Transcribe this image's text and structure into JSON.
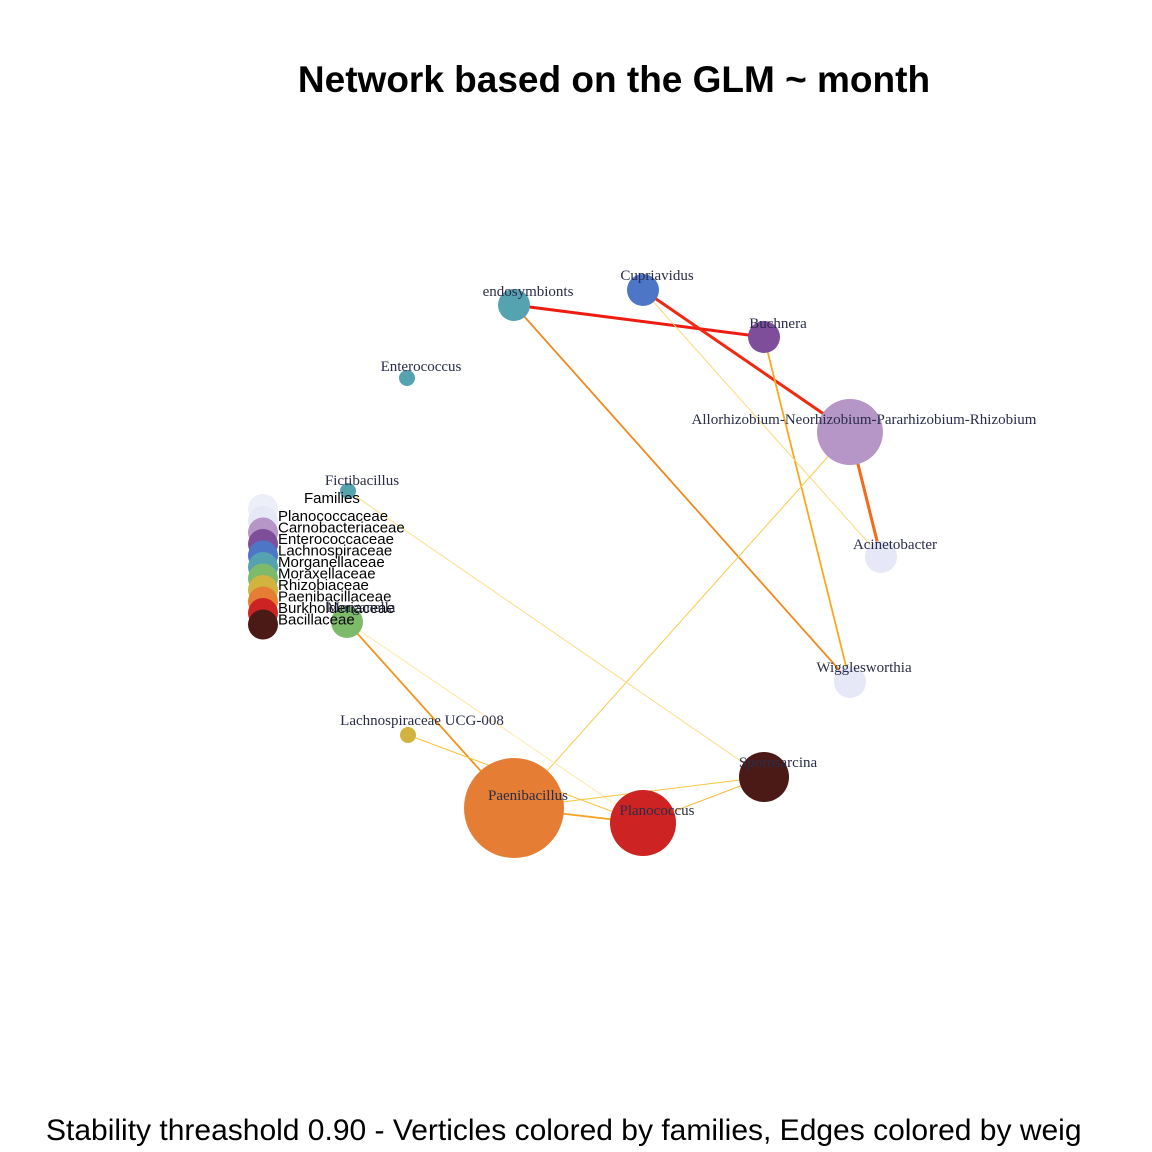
{
  "title": "Network based on the GLM ~ month",
  "caption": "Stability threashold 0.90 - Verticles colored by families, Edges colored by weig",
  "legend": {
    "title": "Families",
    "items": [
      {
        "label": "Planococcaceae",
        "color": "#e6e8f7"
      },
      {
        "label": "Carnobacteriaceae",
        "color": "#b596c6"
      },
      {
        "label": "Enterococcaceae",
        "color": "#7e4e9b"
      },
      {
        "label": "Lachnospiraceae",
        "color": "#4d76c7"
      },
      {
        "label": "Morganellaceae",
        "color": "#55a2b0"
      },
      {
        "label": "Moraxellaceae",
        "color": "#7dba6a"
      },
      {
        "label": "Rhizobiaceae",
        "color": "#d2b33f"
      },
      {
        "label": "Paenibacillaceae",
        "color": "#e57e34"
      },
      {
        "label": "Burkholderiaceae",
        "color": "#cd2423"
      },
      {
        "label": "Bacillaceae",
        "color": "#4b1a16"
      }
    ]
  },
  "nodes": [
    {
      "id": "endosymbionts",
      "label": "endosymbionts",
      "color": "#55a2b0",
      "size": "medium"
    },
    {
      "id": "cupriavidus",
      "label": "Cupriavidus",
      "color": "#4d76c7",
      "size": "medium"
    },
    {
      "id": "buchnera",
      "label": "Buchnera",
      "color": "#7e4e9b",
      "size": "medium"
    },
    {
      "id": "enterococcus",
      "label": "Enterococcus",
      "color": "#55a2b0",
      "size": "small"
    },
    {
      "id": "allorhizobium",
      "label": "Allorhizobium-Neorhizobium-Pararhizobium-Rhizobium",
      "color": "#b596c6",
      "size": "large"
    },
    {
      "id": "fictibacillus",
      "label": "Fictibacillus",
      "color": "#55a2b0",
      "size": "small"
    },
    {
      "id": "acinetobacter",
      "label": "Acinetobacter",
      "color": "#e6e8f7",
      "size": "medium"
    },
    {
      "id": "morganella",
      "label": "Morganella",
      "color": "#7dba6a",
      "size": "medium"
    },
    {
      "id": "wigglesworthia",
      "label": "Wigglesworthia",
      "color": "#e6e8f7",
      "size": "medium"
    },
    {
      "id": "lachnospiraceae",
      "label": "Lachnospiraceae UCG-008",
      "color": "#d2b33f",
      "size": "small"
    },
    {
      "id": "sporosarcina",
      "label": "Sporosarcina",
      "color": "#4b1a16",
      "size": "medium-large"
    },
    {
      "id": "paenibacillus",
      "label": "Paenibacillus",
      "color": "#e57e34",
      "size": "xlarge"
    },
    {
      "id": "planococcus",
      "label": "Planococcus",
      "color": "#cd2423",
      "size": "large"
    }
  ],
  "edges": [
    {
      "source": "endosymbionts",
      "target": "buchnera",
      "color": "#ee1c10",
      "weight": "strong"
    },
    {
      "source": "cupriavidus",
      "target": "allorhizobium",
      "color": "#ee2a10",
      "weight": "strong"
    },
    {
      "source": "allorhizobium",
      "target": "acinetobacter",
      "color": "#f26a1a",
      "weight": "strong"
    },
    {
      "source": "endosymbionts",
      "target": "wigglesworthia",
      "color": "#ef8a1e",
      "weight": "medium"
    },
    {
      "source": "buchnera",
      "target": "wigglesworthia",
      "color": "#f6a923",
      "weight": "medium"
    },
    {
      "source": "cupriavidus",
      "target": "acinetobacter",
      "color": "#fbd97a",
      "weight": "weak"
    },
    {
      "source": "allorhizobium",
      "target": "paenibacillus",
      "color": "#f9c84a",
      "weight": "weak"
    },
    {
      "source": "morganella",
      "target": "paenibacillus",
      "color": "#f0961e",
      "weight": "medium"
    },
    {
      "source": "morganella",
      "target": "planococcus",
      "color": "#fde9a8",
      "weight": "weak"
    },
    {
      "source": "fictibacillus",
      "target": "sporosarcina",
      "color": "#fbdc82",
      "weight": "weak"
    },
    {
      "source": "lachnospiraceae",
      "target": "planococcus",
      "color": "#f9c233",
      "weight": "weak"
    },
    {
      "source": "paenibacillus",
      "target": "planococcus",
      "color": "#f5a623",
      "weight": "medium"
    },
    {
      "source": "paenibacillus",
      "target": "sporosarcina",
      "color": "#f9c43c",
      "weight": "weak"
    },
    {
      "source": "planococcus",
      "target": "sporosarcina",
      "color": "#f7b52c",
      "weight": "weak"
    }
  ]
}
